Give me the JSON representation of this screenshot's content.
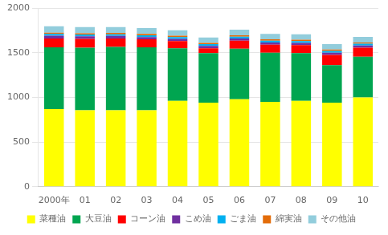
{
  "chart_data": {
    "type": "bar",
    "stacked": true,
    "categories": [
      "2000年",
      "01",
      "02",
      "03",
      "04",
      "05",
      "06",
      "07",
      "08",
      "09",
      "10"
    ],
    "series": [
      {
        "name": "菜種油",
        "color": "#FFFF00",
        "values": [
          870,
          855,
          855,
          855,
          960,
          940,
          980,
          950,
          960,
          940,
          1000
        ]
      },
      {
        "name": "大豆油",
        "color": "#00A550",
        "values": [
          690,
          700,
          710,
          705,
          590,
          555,
          565,
          550,
          535,
          420,
          455
        ]
      },
      {
        "name": "コーン油",
        "color": "#FF0000",
        "values": [
          100,
          100,
          95,
          90,
          80,
          55,
          90,
          90,
          90,
          115,
          100
        ]
      },
      {
        "name": "こめ油",
        "color": "#7030A0",
        "values": [
          30,
          28,
          27,
          25,
          25,
          25,
          25,
          25,
          25,
          25,
          25
        ]
      },
      {
        "name": "ごま油",
        "color": "#00B0F0",
        "values": [
          20,
          20,
          20,
          20,
          20,
          20,
          20,
          20,
          20,
          20,
          20
        ]
      },
      {
        "name": "綿実油",
        "color": "#E36C09",
        "values": [
          15,
          15,
          15,
          15,
          15,
          15,
          15,
          15,
          15,
          15,
          15
        ]
      },
      {
        "name": "その他油",
        "color": "#92CDDC",
        "values": [
          70,
          68,
          65,
          65,
          60,
          60,
          62,
          60,
          60,
          60,
          62
        ]
      }
    ],
    "ylim": [
      0,
      2000
    ],
    "yticks": [
      0,
      500,
      1000,
      1500,
      2000
    ],
    "grid": true,
    "legend": "bottom"
  }
}
